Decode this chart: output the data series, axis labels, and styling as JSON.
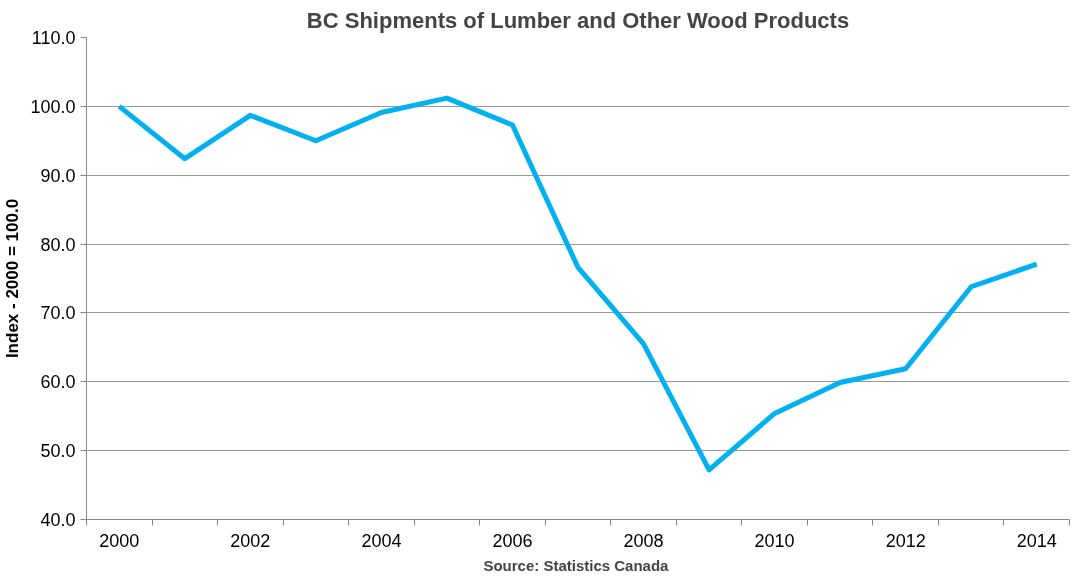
{
  "chart_data": {
    "type": "line",
    "title": "BC Shipments of Lumber and Other Wood Products",
    "ylabel": "Index - 2000 = 100.0",
    "annotations": [
      "Source:  Statistics Canada"
    ],
    "categories": [
      "2000",
      null,
      "2002",
      null,
      "2004",
      null,
      "2006",
      null,
      "2008",
      null,
      "2010",
      null,
      "2012",
      null,
      "2014"
    ],
    "series": [
      {
        "color": "#00b0f0",
        "values": [
          100.0,
          92.4,
          98.7,
          95.0,
          99.1,
          101.2,
          97.3,
          76.6,
          65.5,
          47.2,
          55.4,
          59.9,
          61.9,
          73.8,
          77.1
        ]
      }
    ],
    "ylim": [
      40,
      110
    ],
    "yticks": [
      {
        "value": 40,
        "label": "40.0"
      },
      {
        "value": 50,
        "label": "50.0"
      },
      {
        "value": 60,
        "label": "60.0"
      },
      {
        "value": 70,
        "label": "70.0"
      },
      {
        "value": 80,
        "label": "80.0"
      },
      {
        "value": 90,
        "label": "90.0"
      },
      {
        "value": 100,
        "label": "100.0"
      },
      {
        "value": 110,
        "label": "110.0"
      }
    ],
    "grid": "y",
    "marker": "none",
    "line_style": "solid"
  }
}
